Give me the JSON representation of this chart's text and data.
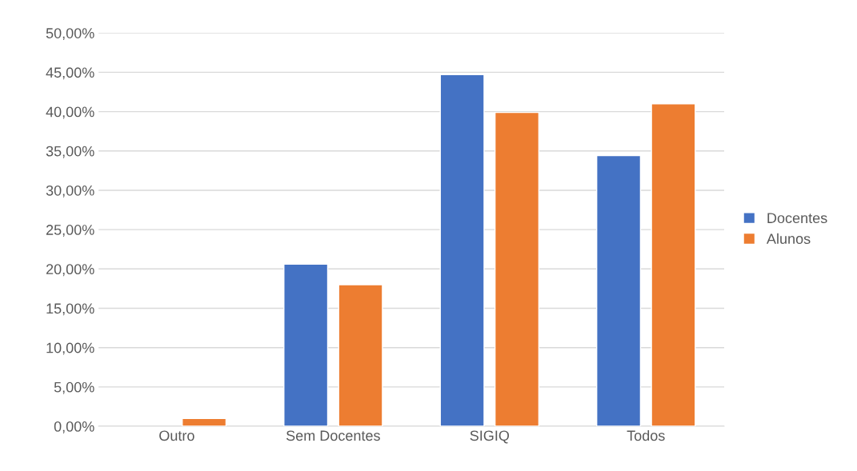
{
  "chart_data": {
    "type": "bar",
    "categories": [
      "Outro",
      "Sem Docentes",
      "SIGIQ",
      "Todos"
    ],
    "series": [
      {
        "name": "Docentes",
        "color": "#4472c4",
        "values": [
          null,
          20.6,
          44.7,
          34.4
        ]
      },
      {
        "name": "Alunos",
        "color": "#ed7d31",
        "values": [
          1,
          18.0,
          39.9,
          41.0
        ]
      }
    ],
    "ylim": [
      0,
      50
    ],
    "yticks": [
      {
        "value": 0,
        "label": "0,00%"
      },
      {
        "value": 5,
        "label": "5,00%"
      },
      {
        "value": 10,
        "label": "10,00%"
      },
      {
        "value": 15,
        "label": "15,00%"
      },
      {
        "value": 20,
        "label": "20,00%"
      },
      {
        "value": 25,
        "label": "25,00%"
      },
      {
        "value": 30,
        "label": "30,00%"
      },
      {
        "value": 35,
        "label": "35,00%"
      },
      {
        "value": 40,
        "label": "40,00%"
      },
      {
        "value": 45,
        "label": "45,00%"
      },
      {
        "value": 50,
        "label": "50,00%"
      }
    ],
    "grid": "y",
    "legend": "right"
  }
}
